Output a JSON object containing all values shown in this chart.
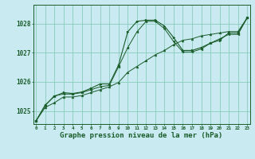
{
  "background_color": "#c8eaf0",
  "grid_color": "#88ccbb",
  "line_color": "#1a5c2a",
  "title": "Graphe pression niveau de la mer (hPa)",
  "title_fontsize": 6.5,
  "ylabel_values": [
    1025,
    1026,
    1027,
    1028
  ],
  "xlim": [
    -0.3,
    23.3
  ],
  "ylim": [
    1024.55,
    1028.65
  ],
  "hours": [
    0,
    1,
    2,
    3,
    4,
    5,
    6,
    7,
    8,
    9,
    10,
    11,
    12,
    13,
    14,
    15,
    16,
    17,
    18,
    19,
    20,
    21,
    22,
    23
  ],
  "series1": [
    1024.65,
    1025.2,
    1025.5,
    1025.63,
    1025.6,
    1025.65,
    1025.78,
    1025.93,
    1025.93,
    1026.58,
    1027.72,
    1028.08,
    1028.12,
    1028.12,
    1027.92,
    1027.52,
    1027.08,
    1027.08,
    1027.18,
    1027.33,
    1027.43,
    1027.68,
    1027.68,
    1028.2
  ],
  "series2": [
    1024.65,
    1025.18,
    1025.52,
    1025.58,
    1025.58,
    1025.63,
    1025.73,
    1025.83,
    1025.88,
    1026.52,
    1027.18,
    1027.72,
    1028.08,
    1028.08,
    1027.83,
    1027.38,
    1027.03,
    1027.03,
    1027.13,
    1027.33,
    1027.48,
    1027.63,
    1027.63,
    1028.2
  ],
  "series3": [
    1024.65,
    1025.12,
    1025.28,
    1025.48,
    1025.48,
    1025.53,
    1025.63,
    1025.73,
    1025.83,
    1025.98,
    1026.33,
    1026.53,
    1026.73,
    1026.93,
    1027.08,
    1027.28,
    1027.43,
    1027.48,
    1027.58,
    1027.63,
    1027.68,
    1027.73,
    1027.73,
    1028.2
  ]
}
